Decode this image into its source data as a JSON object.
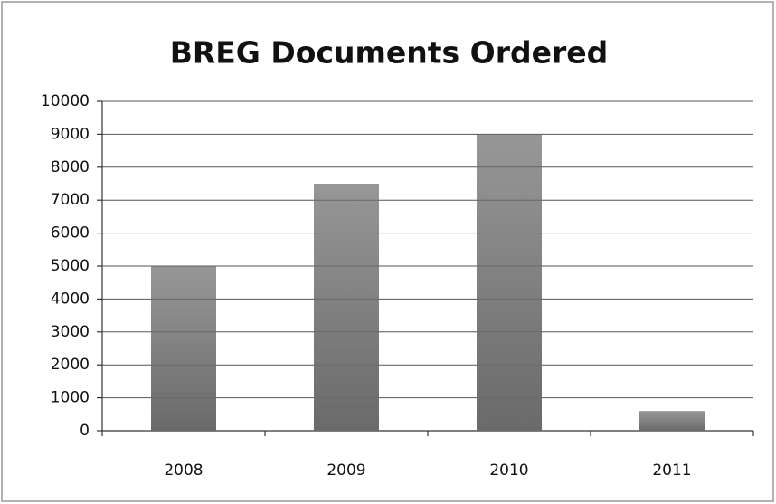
{
  "chart_data": {
    "type": "bar",
    "title": "BREG Documents Ordered",
    "categories": [
      "2008",
      "2009",
      "2010",
      "2011"
    ],
    "values": [
      5000,
      7500,
      9000,
      600
    ],
    "color": "#6a6a6a",
    "ylim": [
      0,
      10000
    ],
    "yticks": [
      0,
      1000,
      2000,
      3000,
      4000,
      5000,
      6000,
      7000,
      8000,
      9000,
      10000
    ],
    "grid": true
  }
}
